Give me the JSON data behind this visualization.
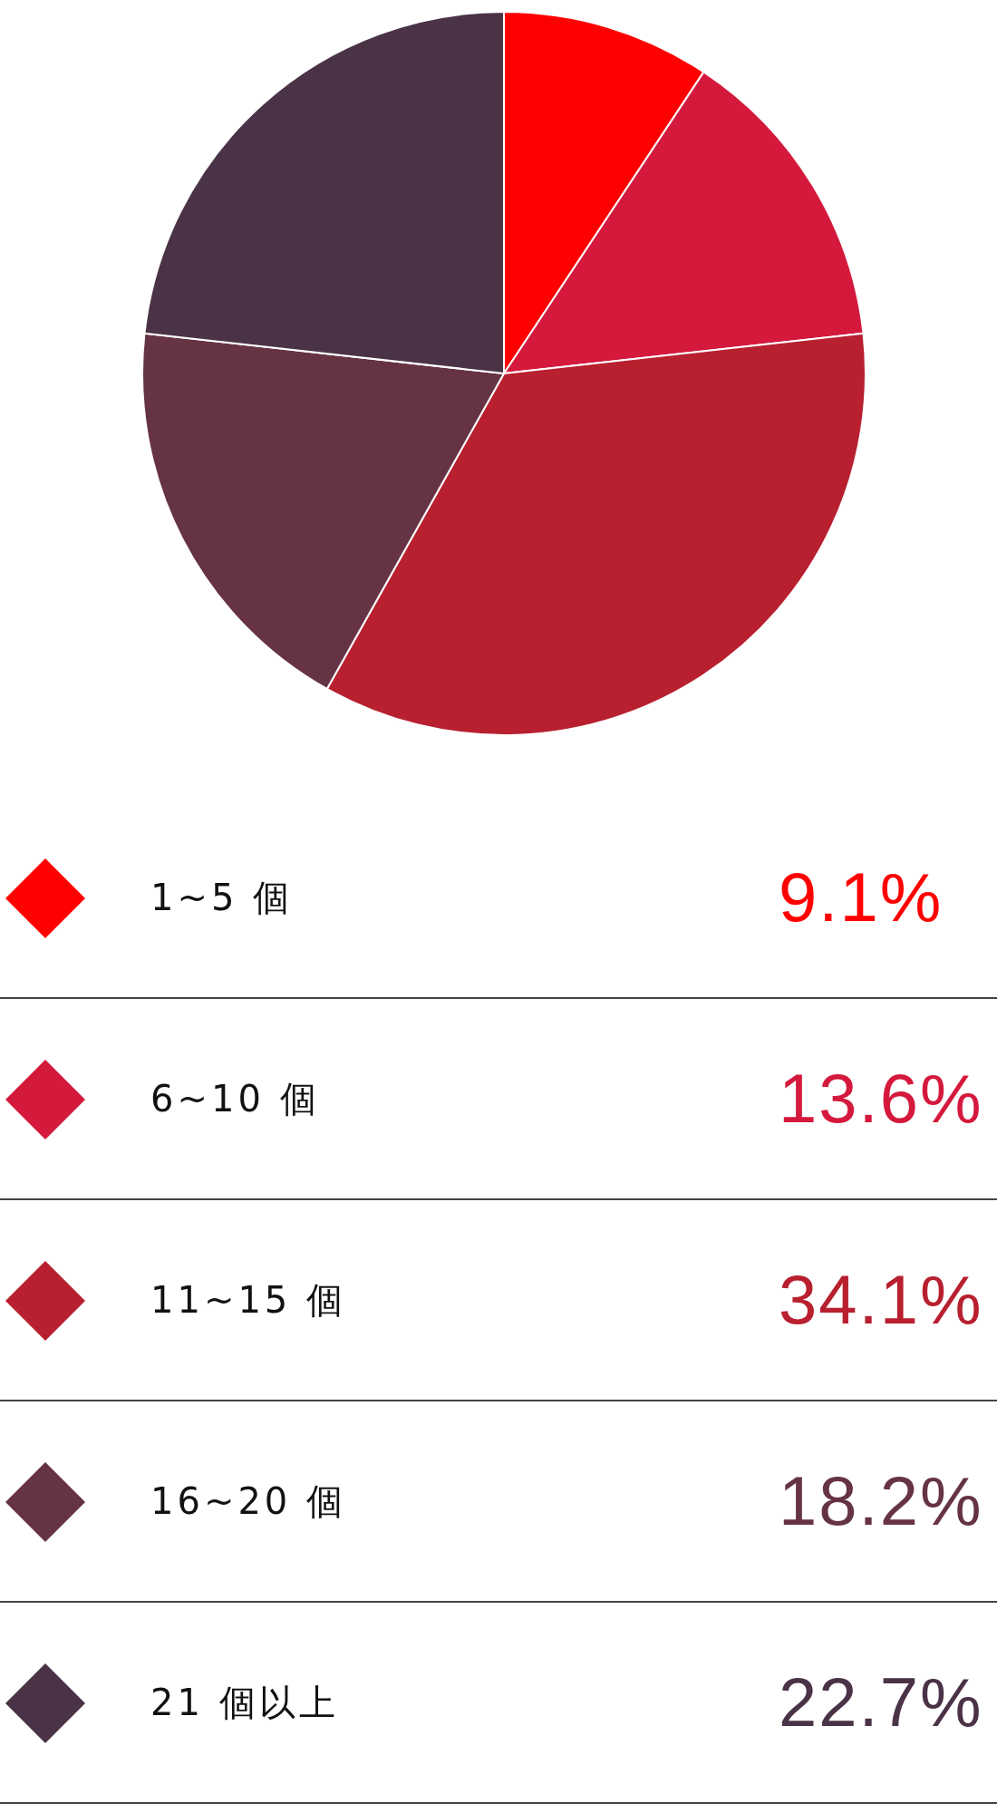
{
  "chart_data": {
    "type": "pie",
    "categories": [
      "1~5 個",
      "6~10 個",
      "11~15 個",
      "16~20 個",
      "21 個以上"
    ],
    "values": [
      9.1,
      13.6,
      34.1,
      18.2,
      22.7
    ],
    "colors": [
      "#ff0000",
      "#d4193d",
      "#b8202f",
      "#663345",
      "#4a3346"
    ],
    "value_labels": [
      "9.1%",
      "13.6%",
      "34.1%",
      "18.2%",
      "22.7%"
    ],
    "legend": "bottom"
  }
}
